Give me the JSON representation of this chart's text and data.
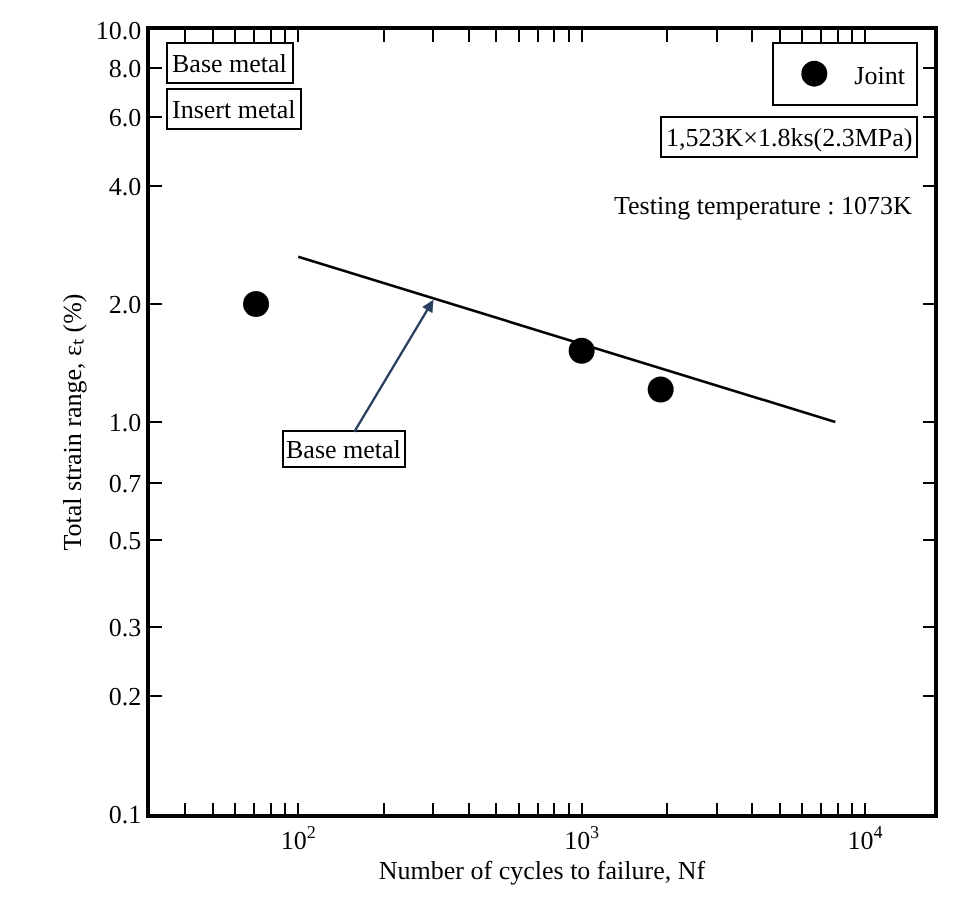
{
  "chart_data": {
    "type": "scatter",
    "xlabel": "Number of cycles to failure, Nf",
    "ylabel": "Total strain range, εₜ (%)",
    "log": "xy",
    "xlim": [
      30,
      17500
    ],
    "ylim": [
      0.1,
      10
    ],
    "xticks": [
      {
        "value": 40,
        "label": null
      },
      {
        "value": 50,
        "label": null
      },
      {
        "value": 60,
        "label": null
      },
      {
        "value": 70,
        "label": null
      },
      {
        "value": 80,
        "label": null
      },
      {
        "value": 90,
        "label": null
      },
      {
        "value": 100,
        "label": "10$^{2}$"
      },
      {
        "value": 200,
        "label": null
      },
      {
        "value": 300,
        "label": null
      },
      {
        "value": 400,
        "label": null
      },
      {
        "value": 500,
        "label": null
      },
      {
        "value": 600,
        "label": null
      },
      {
        "value": 700,
        "label": null
      },
      {
        "value": 800,
        "label": null
      },
      {
        "value": 900,
        "label": null
      },
      {
        "value": 1000,
        "label": "10$^{3}$"
      },
      {
        "value": 2000,
        "label": null
      },
      {
        "value": 3000,
        "label": null
      },
      {
        "value": 4000,
        "label": null
      },
      {
        "value": 5000,
        "label": null
      },
      {
        "value": 6000,
        "label": null
      },
      {
        "value": 7000,
        "label": null
      },
      {
        "value": 8000,
        "label": null
      },
      {
        "value": 9000,
        "label": null
      },
      {
        "value": 10000,
        "label": "10$^{4}$"
      }
    ],
    "yticks": [
      {
        "value": 0.1,
        "label": "0.1"
      },
      {
        "value": 0.2,
        "label": "0.2"
      },
      {
        "value": 0.3,
        "label": "0.3"
      },
      {
        "value": 0.5,
        "label": "0.5"
      },
      {
        "value": 0.7,
        "label": "0.7"
      },
      {
        "value": 1.0,
        "label": "1.0"
      },
      {
        "value": 2.0,
        "label": "2.0"
      },
      {
        "value": 4.0,
        "label": "4.0"
      },
      {
        "value": 6.0,
        "label": "6.0"
      },
      {
        "value": 8.0,
        "label": "8.0"
      },
      {
        "value": 10.0,
        "label": "10.0"
      }
    ],
    "legend": "top right",
    "series": [
      {
        "name": "Joint",
        "marker": "circle",
        "color": "#000000",
        "x": [
          71,
          1000,
          1900
        ],
        "values": [
          2.0,
          1.52,
          1.21
        ]
      },
      {
        "type": "line",
        "marker": "none",
        "line_style": "solid",
        "color": "#000000",
        "x": [
          100,
          7850
        ],
        "values": [
          2.64,
          1.0
        ]
      }
    ],
    "annotations": [
      "Base metal",
      "Insert metal",
      "1,523K×1.8ks(2.3MPa)",
      "Testing temperature : 1073K",
      {
        "text": "Base metal",
        "x": 300,
        "y": 2.05
      }
    ]
  }
}
